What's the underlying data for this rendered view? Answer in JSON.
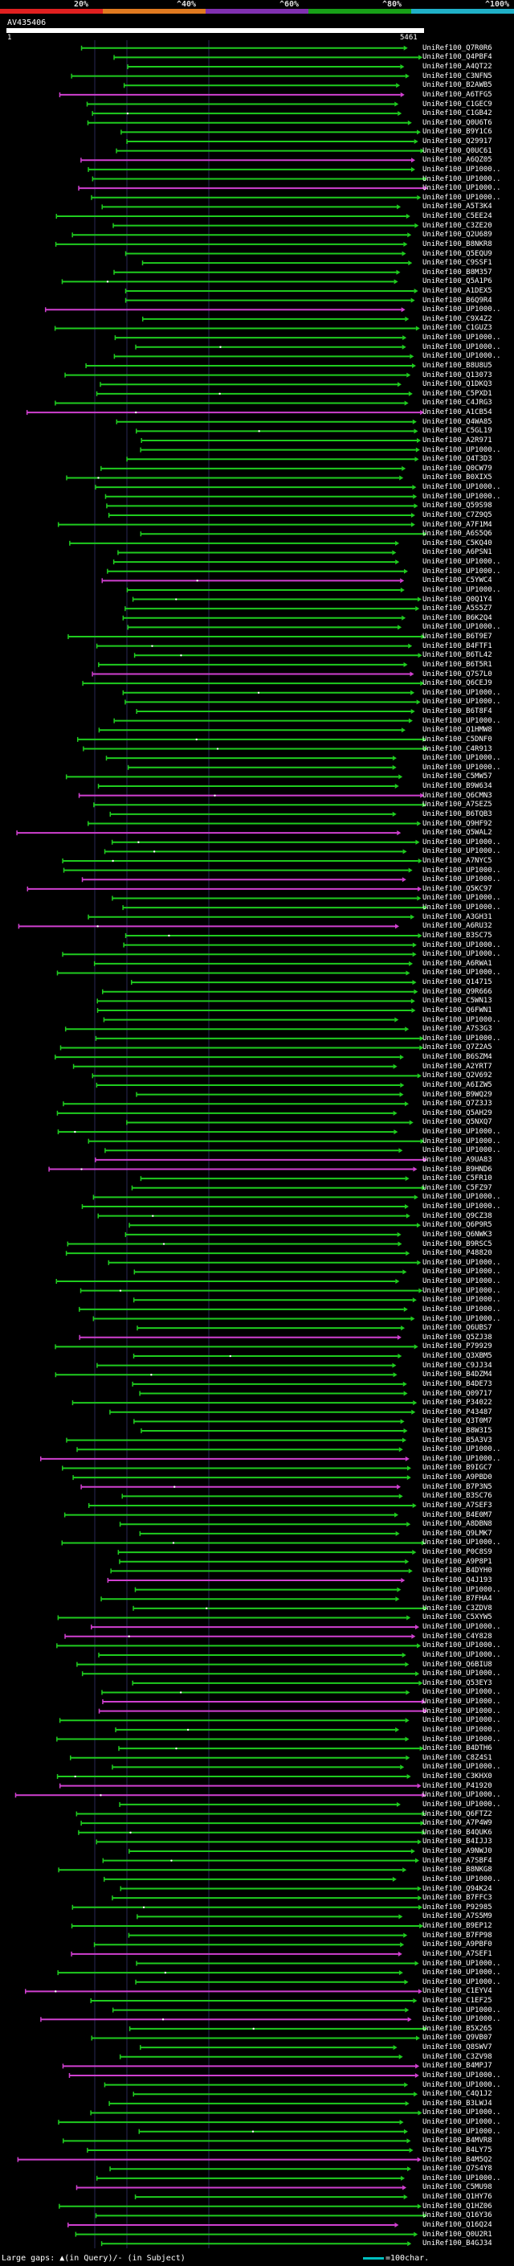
{
  "scale": {
    "labels": [
      "20%",
      "^40%",
      "^60%",
      "^80%",
      "^100%"
    ],
    "colors": [
      "#e02020",
      "#e07a20",
      "#8030b0",
      "#18a018",
      "#20b0c8"
    ]
  },
  "query": {
    "name": "AV435406",
    "start": "1",
    "end": "5461",
    "length": 5461
  },
  "colors": {
    "green": "#1fcc1f",
    "magenta": "#d040d0",
    "dots": "#ffffff"
  },
  "hits": [
    "UniRef100_Q7R0R6",
    "UniRef100_Q4PBF4",
    "UniRef100_A4QT22",
    "UniRef100_C3NFN5",
    "UniRef100_B2AWB5",
    "UniRef100_A6TFG5",
    "UniRef100_C1GEC9",
    "UniRef100_C1GB42",
    "UniRef100_Q0U6T6",
    "UniRef100_B9Y1C6",
    "UniRef100_Q29917",
    "UniRef100_Q0UC61",
    "UniRef100_A6QZ05",
    "UniRef100_UP1000..",
    "UniRef100_UP1000..",
    "UniRef100_UP1000..",
    "UniRef100_UP1000..",
    "UniRef100_A5T3K4",
    "UniRef100_C5EE24",
    "UniRef100_C3ZE20",
    "UniRef100_Q2U689",
    "UniRef100_B8NKR8",
    "UniRef100_Q5EQU9",
    "UniRef100_C9SSF1",
    "UniRef100_B8M357",
    "UniRef100_Q5A1P6",
    "UniRef100_A1DEX5",
    "UniRef100_B6Q9R4",
    "UniRef100_UP1000..",
    "UniRef100_C9X4Z2",
    "UniRef100_C1GUZ3",
    "UniRef100_UP1000..",
    "UniRef100_UP1000..",
    "UniRef100_UP1000..",
    "UniRef100_B8U8U5",
    "UniRef100_Q13073",
    "UniRef100_Q1DKQ3",
    "UniRef100_C5PXD1",
    "UniRef100_C4JRG3",
    "UniRef100_A1CB54",
    "UniRef100_Q4WA85",
    "UniRef100_C5GL19",
    "UniRef100_A2R971",
    "UniRef100_UP1000..",
    "UniRef100_Q4T3D3",
    "UniRef100_Q0CW79",
    "UniRef100_B0XIX5",
    "UniRef100_UP1000..",
    "UniRef100_UP1000..",
    "UniRef100_Q59S98",
    "UniRef100_C7Z9Q5",
    "UniRef100_A7F1M4",
    "UniRef100_A6S5Q6",
    "UniRef100_C5KQ40",
    "UniRef100_A6PSN1",
    "UniRef100_UP1000..",
    "UniRef100_UP1000..",
    "UniRef100_C5YWC4",
    "UniRef100_UP1000..",
    "UniRef100_Q0Q1Y4",
    "UniRef100_A5S5Z7",
    "UniRef100_B6K2Q4",
    "UniRef100_UP1000..",
    "UniRef100_B6T9E7",
    "UniRef100_B4FTF1",
    "UniRef100_B6TL42",
    "UniRef100_B6T5R1",
    "UniRef100_Q7S7L0",
    "UniRef100_Q6CEJ9",
    "UniRef100_UP1000..",
    "UniRef100_UP1000..",
    "UniRef100_B6T8F4",
    "UniRef100_UP1000..",
    "UniRef100_Q1HMW8",
    "UniRef100_C5DNF0",
    "UniRef100_C4R913",
    "UniRef100_UP1000..",
    "UniRef100_UP1000..",
    "UniRef100_C5MW57",
    "UniRef100_B9W634",
    "UniRef100_Q6CMN3",
    "UniRef100_A7SEZ5",
    "UniRef100_B6TQB3",
    "UniRef100_Q9HF92",
    "UniRef100_Q5WAL2",
    "UniRef100_UP1000..",
    "UniRef100_UP1000..",
    "UniRef100_A7NYC5",
    "UniRef100_UP1000..",
    "UniRef100_UP1000..",
    "UniRef100_Q5KC97",
    "UniRef100_UP1000..",
    "UniRef100_UP1000..",
    "UniRef100_A3GH31",
    "UniRef100_A6RU32",
    "UniRef100_B3SC75",
    "UniRef100_UP1000..",
    "UniRef100_UP1000..",
    "UniRef100_A6RWA1",
    "UniRef100_UP1000..",
    "UniRef100_Q14715",
    "UniRef100_Q9R666",
    "UniRef100_C5WN13",
    "UniRef100_Q6FWN1",
    "UniRef100_UP1000..",
    "UniRef100_A7S3G3",
    "UniRef100_UP1000..",
    "UniRef100_Q7Z2A5",
    "UniRef100_B6SZM4",
    "UniRef100_A2YRT7",
    "UniRef100_Q2V692",
    "UniRef100_A6IZW5",
    "UniRef100_B9WQ29",
    "UniRef100_Q7Z3J3",
    "UniRef100_Q5AH29",
    "UniRef100_Q5NXQ7",
    "UniRef100_UP1000..",
    "UniRef100_UP1000..",
    "UniRef100_UP1000..",
    "UniRef100_A9UA83",
    "UniRef100_B9HND6",
    "UniRef100_C5FR10",
    "UniRef100_C5FZ97",
    "UniRef100_UP1000..",
    "UniRef100_UP1000..",
    "UniRef100_Q9CZ38",
    "UniRef100_Q6P9R5",
    "UniRef100_Q6NWK3",
    "UniRef100_B9RSC5",
    "UniRef100_P48820",
    "UniRef100_UP1000..",
    "UniRef100_UP1000..",
    "UniRef100_UP1000..",
    "UniRef100_UP1000..",
    "UniRef100_UP1000..",
    "UniRef100_UP1000..",
    "UniRef100_UP1000..",
    "UniRef100_Q6UBS7",
    "UniRef100_Q5ZJ38",
    "UniRef100_P79929",
    "UniRef100_Q3XBM5",
    "UniRef100_C9JJ34",
    "UniRef100_B4DZM4",
    "UniRef100_B4DE73",
    "UniRef100_Q09717",
    "UniRef100_P34022",
    "UniRef100_P43487",
    "UniRef100_Q3T0M7",
    "UniRef100_B8W3I5",
    "UniRef100_B5A3V3",
    "UniRef100_UP1000..",
    "UniRef100_UP1000..",
    "UniRef100_B9IGC7",
    "UniRef100_A9PBD0",
    "UniRef100_B7P3N5",
    "UniRef100_B3SC76",
    "UniRef100_A7SEF3",
    "UniRef100_B4E0M7",
    "UniRef100_A8DBN8",
    "UniRef100_Q9LMK7",
    "UniRef100_UP1000..",
    "UniRef100_P0C8S9",
    "UniRef100_A9P8P1",
    "UniRef100_B4DYH0",
    "UniRef100_Q4J193",
    "UniRef100_UP1000..",
    "UniRef100_B7FHA4",
    "UniRef100_C3ZDV8",
    "UniRef100_C5XYW5",
    "UniRef100_UP1000..",
    "UniRef100_C4Y828",
    "UniRef100_UP1000..",
    "UniRef100_UP1000..",
    "UniRef100_Q6BIU8",
    "UniRef100_UP1000..",
    "UniRef100_Q53EY3",
    "UniRef100_UP1000..",
    "UniRef100_UP1000..",
    "UniRef100_UP1000..",
    "UniRef100_UP1000..",
    "UniRef100_UP1000..",
    "UniRef100_UP1000..",
    "UniRef100_B4DTH6",
    "UniRef100_C8Z4S1",
    "UniRef100_UP1000..",
    "UniRef100_C3KHX0",
    "UniRef100_P41920",
    "UniRef100_UP1000..",
    "UniRef100_UP1000..",
    "UniRef100_Q6FTZ2",
    "UniRef100_A7P4W9",
    "UniRef100_B4QUK6",
    "UniRef100_B4IJJ3",
    "UniRef100_A9NWJ0",
    "UniRef100_A7SBF4",
    "UniRef100_B8NKG8",
    "UniRef100_UP1000..",
    "UniRef100_Q94K24",
    "UniRef100_B7FFC3",
    "UniRef100_P92985",
    "UniRef100_A7S5M9",
    "UniRef100_B9EP12",
    "UniRef100_B7FP98",
    "UniRef100_A9PBF0",
    "UniRef100_A7SEF1",
    "UniRef100_UP1000..",
    "UniRef100_UP1000..",
    "UniRef100_UP1000..",
    "UniRef100_C1EYV4",
    "UniRef100_C1EF25",
    "UniRef100_UP1000..",
    "UniRef100_UP1000..",
    "UniRef100_B5X265",
    "UniRef100_Q9VB07",
    "UniRef100_Q8SWV7",
    "UniRef100_C3ZV98",
    "UniRef100_B4MPJ7",
    "UniRef100_UP1000..",
    "UniRef100_UP1000..",
    "UniRef100_C4Q1J2",
    "UniRef100_B3LWJ4",
    "UniRef100_UP1000..",
    "UniRef100_UP1000..",
    "UniRef100_UP1000..",
    "UniRef100_B4MVR8",
    "UniRef100_B4LY75",
    "UniRef100_B4M5Q2",
    "UniRef100_Q7S4Y8",
    "UniRef100_UP1000..",
    "UniRef100_C5MU98",
    "UniRef100_Q1HY76",
    "UniRef100_Q1HZ06",
    "UniRef100_Q16Y36",
    "UniRef100_Q16Q24",
    "UniRef100_Q0U2R1",
    "UniRef100_B4GJ34"
  ],
  "footer": {
    "large_gaps": "Large gaps: ▲(in Query)/- (in Subject)",
    "key": "=100char."
  }
}
